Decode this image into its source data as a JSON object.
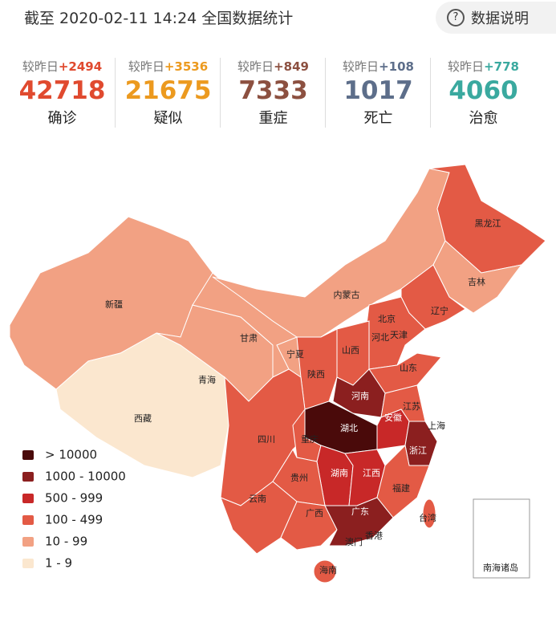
{
  "header": {
    "title": "截至 2020-02-11 14:24 全国数据统计",
    "help_button": "数据说明"
  },
  "stats": {
    "compare_label": "较昨日",
    "items": [
      {
        "delta": "+2494",
        "value": 42718,
        "label": "确诊",
        "color": "#e04a2f"
      },
      {
        "delta": "+3536",
        "value": 21675,
        "label": "疑似",
        "color": "#ec9a1f"
      },
      {
        "delta": "+849",
        "value": 7333,
        "label": "重症",
        "color": "#8c5040"
      },
      {
        "delta": "+108",
        "value": 1017,
        "label": "死亡",
        "color": "#5d6e8a"
      },
      {
        "delta": "+778",
        "value": 4060,
        "label": "治愈",
        "color": "#3aa99f"
      }
    ]
  },
  "map": {
    "provinces": [
      "新疆",
      "西藏",
      "青海",
      "甘肃",
      "内蒙古",
      "黑龙江",
      "吉林",
      "辽宁",
      "北京",
      "天津",
      "河北",
      "山西",
      "宁夏",
      "陕西",
      "山东",
      "河南",
      "江苏",
      "安徽",
      "上海",
      "湖北",
      "四川",
      "重庆",
      "浙江",
      "湖南",
      "江西",
      "贵州",
      "云南",
      "福建",
      "广西",
      "广东",
      "台湾",
      "香港",
      "澳门",
      "海南"
    ],
    "inset_label": "南海诸岛",
    "legend": [
      {
        "label": "> 10000",
        "color": "#4a0a0a"
      },
      {
        "label": "1000 - 10000",
        "color": "#8b1f1f"
      },
      {
        "label": "500 - 999",
        "color": "#c82828"
      },
      {
        "label": "100 - 499",
        "color": "#e35a45"
      },
      {
        "label": "10 - 99",
        "color": "#f2a183"
      },
      {
        "label": "1 - 9",
        "color": "#fbe7cf"
      }
    ]
  }
}
